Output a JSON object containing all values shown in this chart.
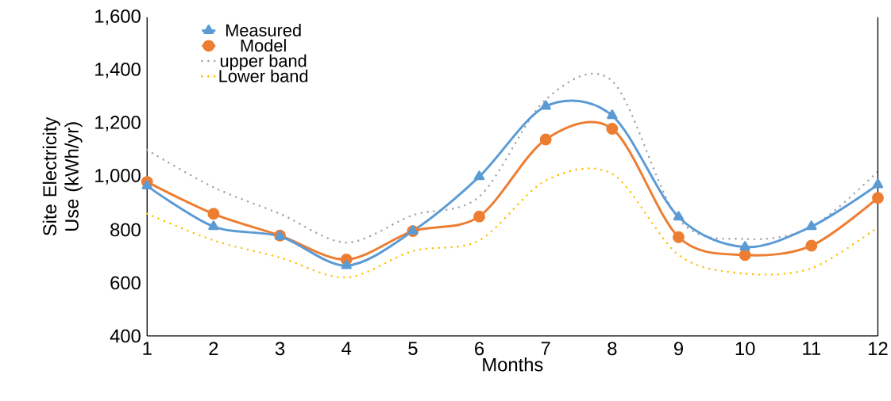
{
  "chart_data": {
    "type": "line",
    "xlabel": "Months",
    "ylabel": "Site Electricity Use (kWh/yr)",
    "x": [
      1,
      2,
      3,
      4,
      5,
      6,
      7,
      8,
      9,
      10,
      11,
      12
    ],
    "xlim": [
      1,
      12
    ],
    "xticks": [
      1,
      2,
      3,
      4,
      5,
      6,
      7,
      8,
      9,
      10,
      11,
      12
    ],
    "ylim": [
      400,
      1600
    ],
    "yticks": [
      {
        "value": 400,
        "label": "400"
      },
      {
        "value": 600,
        "label": "600"
      },
      {
        "value": 800,
        "label": "800"
      },
      {
        "value": 1000,
        "label": "1,000"
      },
      {
        "value": 1200,
        "label": "1,200"
      },
      {
        "value": 1400,
        "label": "1,400"
      },
      {
        "value": 1600,
        "label": "1,600"
      }
    ],
    "grid": false,
    "legend": "top left",
    "series": [
      {
        "name": "Measured",
        "color": "#5b9bd5",
        "marker": "triangle",
        "line_style": "solid",
        "values": [
          965,
          812,
          775,
          665,
          795,
          1000,
          1265,
          1230,
          848,
          735,
          812,
          970
        ]
      },
      {
        "name": "Model",
        "color": "#ed7d31",
        "marker": "circle",
        "line_style": "solid",
        "values": [
          980,
          860,
          778,
          688,
          795,
          850,
          1140,
          1180,
          772,
          705,
          740,
          920
        ]
      },
      {
        "name": "upper band",
        "color": "#a5a5a5",
        "marker": "none",
        "line_style": "dotted",
        "values": [
          1100,
          960,
          860,
          752,
          855,
          925,
          1290,
          1360,
          840,
          765,
          810,
          1020
        ]
      },
      {
        "name": "Lower band",
        "color": "#ffc000",
        "marker": "none",
        "line_style": "dotted",
        "values": [
          860,
          760,
          695,
          620,
          720,
          760,
          985,
          1010,
          705,
          635,
          655,
          810
        ]
      }
    ]
  }
}
